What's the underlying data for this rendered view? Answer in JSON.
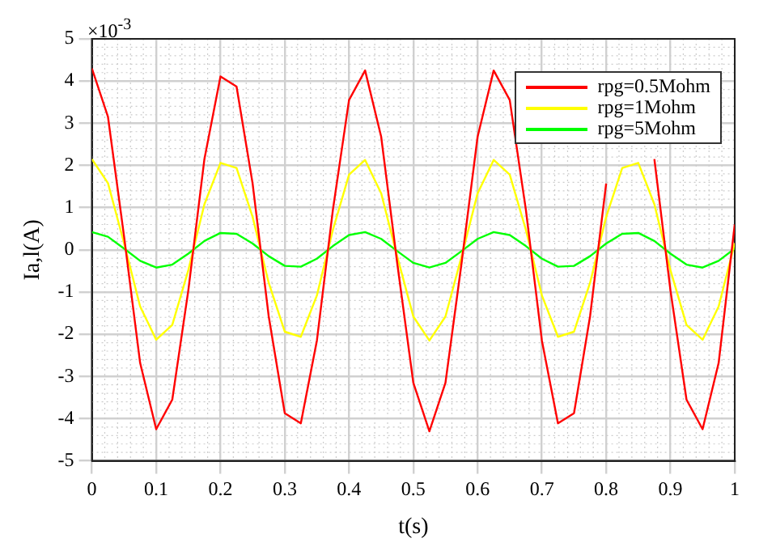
{
  "chart_data": {
    "type": "line",
    "xlabel": "t(s)",
    "ylabel": "Ia,l(A)",
    "annotations": [
      "×10$^{-3}$"
    ],
    "x": [
      0,
      0.025,
      0.05,
      0.075,
      0.1,
      0.125,
      0.15,
      0.175,
      0.2,
      0.225,
      0.25,
      0.275,
      0.3,
      0.325,
      0.35,
      0.375,
      0.4,
      0.425,
      0.45,
      0.475,
      0.5,
      0.525,
      0.55,
      0.575,
      0.6,
      0.625,
      0.65,
      0.675,
      0.7,
      0.725,
      0.75,
      0.775,
      0.8,
      0.825,
      0.85,
      0.875,
      0.9,
      0.925,
      0.95,
      0.975,
      1
    ],
    "series": [
      {
        "name": "rpg=0.5Mohm",
        "color": "#ff0000",
        "values": [
          4.3,
          3.15,
          0.32,
          -2.68,
          -4.25,
          -3.55,
          -0.96,
          2.15,
          4.11,
          3.87,
          1.57,
          -1.57,
          -3.87,
          -4.11,
          -2.15,
          0.96,
          3.55,
          4.25,
          2.68,
          -0.32,
          -3.15,
          -4.3,
          -3.15,
          -0.32,
          2.68,
          4.25,
          3.55,
          0.96,
          -2.15,
          -4.11,
          -3.87,
          -1.57,
          1.57,
          null,
          null,
          2.15,
          -0.96,
          -3.55,
          -4.25,
          -2.68,
          0.6
        ]
      },
      {
        "name": "rpg=1Mohm",
        "color": "#ffff00",
        "values": [
          2.15,
          1.58,
          0.16,
          -1.34,
          -2.13,
          -1.78,
          -0.48,
          1.08,
          2.06,
          1.94,
          0.78,
          -0.78,
          -1.94,
          -2.06,
          -1.08,
          0.48,
          1.78,
          2.13,
          1.34,
          -0.16,
          -1.58,
          -2.15,
          -1.58,
          -0.16,
          1.34,
          2.13,
          1.78,
          0.48,
          -1.08,
          -2.06,
          -1.94,
          -0.78,
          0.78,
          1.94,
          2.06,
          1.08,
          -0.48,
          -1.78,
          -2.13,
          -1.34,
          0.16
        ]
      },
      {
        "name": "rpg=5Mohm",
        "color": "#00ff00",
        "values": [
          0.42,
          0.31,
          0.03,
          -0.26,
          -0.42,
          -0.35,
          -0.09,
          0.21,
          0.4,
          0.38,
          0.15,
          -0.15,
          -0.38,
          -0.4,
          -0.21,
          0.09,
          0.35,
          0.42,
          0.26,
          -0.03,
          -0.31,
          -0.42,
          -0.31,
          -0.03,
          0.26,
          0.42,
          0.35,
          0.09,
          -0.21,
          -0.4,
          -0.38,
          -0.15,
          0.15,
          0.38,
          0.4,
          0.21,
          -0.09,
          -0.35,
          -0.42,
          -0.26,
          0.03
        ]
      }
    ],
    "xlim": [
      0,
      1
    ],
    "xticks": [
      0,
      0.1,
      0.2,
      0.3,
      0.4,
      0.5,
      0.6,
      0.7,
      0.8,
      0.9,
      1
    ],
    "ylim": [
      -5,
      5
    ],
    "yticks": [
      -5,
      -4,
      -3,
      -2,
      -1,
      0,
      1,
      2,
      3,
      4,
      5
    ],
    "grid": true,
    "legend": "top right",
    "marker": "none",
    "line_style": "solid"
  }
}
